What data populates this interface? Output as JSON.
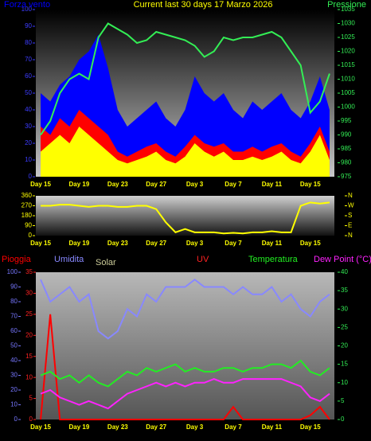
{
  "chart_data": [
    {
      "type": "area",
      "title": "Current last 30 days 17 Marzo 2026",
      "categories": [
        "Day 15",
        null,
        null,
        null,
        "Day 19",
        null,
        null,
        null,
        "Day 23",
        null,
        null,
        null,
        "Day 27",
        null,
        null,
        null,
        "Day 3",
        null,
        null,
        null,
        "Day 7",
        null,
        null,
        null,
        "Day 11",
        null,
        null,
        null,
        "Day 15",
        null,
        null
      ],
      "ylim": [
        0,
        100
      ],
      "yticks": [
        0,
        10,
        20,
        30,
        40,
        50,
        60,
        70,
        80,
        90,
        100
      ],
      "ycolor": "#3c3cff",
      "y2lim": [
        975,
        1035
      ],
      "y2ticks": [
        975,
        980,
        985,
        990,
        995,
        1000,
        1005,
        1010,
        1015,
        1020,
        1025,
        1030,
        1035
      ],
      "y2color": "#33ee55",
      "series": [
        {
          "name": "Forza vento",
          "color": "#0000ff",
          "values": [
            50,
            45,
            55,
            60,
            70,
            75,
            85,
            65,
            40,
            30,
            35,
            40,
            45,
            35,
            30,
            40,
            60,
            50,
            45,
            50,
            40,
            35,
            45,
            40,
            45,
            50,
            40,
            35,
            45,
            60,
            40
          ]
        },
        {
          "color": "#ff0000",
          "values": [
            30,
            25,
            35,
            30,
            40,
            35,
            30,
            25,
            15,
            12,
            15,
            18,
            20,
            15,
            12,
            18,
            25,
            20,
            18,
            20,
            15,
            15,
            18,
            15,
            18,
            20,
            15,
            12,
            20,
            30,
            15
          ]
        },
        {
          "color": "#ffff00",
          "values": [
            15,
            20,
            25,
            20,
            30,
            25,
            20,
            15,
            10,
            8,
            10,
            12,
            15,
            10,
            8,
            12,
            20,
            15,
            12,
            15,
            10,
            10,
            12,
            10,
            12,
            15,
            10,
            8,
            15,
            25,
            10
          ]
        },
        {
          "name": "Pressione",
          "type": "line",
          "axis": "y2",
          "color": "#33ee55",
          "values": [
            990,
            995,
            1005,
            1010,
            1012,
            1010,
            1025,
            1030,
            1028,
            1026,
            1023,
            1024,
            1027,
            1026,
            1025,
            1024,
            1022,
            1018,
            1020,
            1025,
            1024,
            1025,
            1025,
            1026,
            1027,
            1025,
            1020,
            1015,
            998,
            1002,
            1012
          ]
        }
      ]
    },
    {
      "type": "line",
      "categories": [
        "Day 15",
        null,
        null,
        null,
        "Day 19",
        null,
        null,
        null,
        "Day 23",
        null,
        null,
        null,
        "Day 27",
        null,
        null,
        null,
        "Day 3",
        null,
        null,
        null,
        "Day 7",
        null,
        null,
        null,
        "Day 11",
        null,
        null,
        null,
        "Day 15",
        null,
        null
      ],
      "ylim": [
        0,
        360
      ],
      "yticks": [
        0,
        90,
        180,
        270,
        360
      ],
      "ycolor": "#ffff00",
      "y2lim": [
        0,
        360
      ],
      "y2ticks": [
        {
          "value": 360,
          "label": "N"
        },
        {
          "value": 270,
          "label": "W"
        },
        {
          "value": 180,
          "label": "S"
        },
        {
          "value": 90,
          "label": "E"
        },
        {
          "value": 0,
          "label": "N"
        }
      ],
      "y2color": "#ffff00",
      "series": [
        {
          "color": "#ffff00",
          "values": [
            270,
            270,
            280,
            280,
            270,
            260,
            270,
            270,
            260,
            260,
            270,
            270,
            240,
            120,
            30,
            60,
            30,
            30,
            30,
            20,
            25,
            20,
            30,
            30,
            40,
            30,
            30,
            270,
            300,
            290,
            300
          ]
        }
      ]
    },
    {
      "type": "line",
      "categories": [
        "Day 15",
        null,
        null,
        null,
        "Day 19",
        null,
        null,
        null,
        "Day 23",
        null,
        null,
        null,
        "Day 27",
        null,
        null,
        null,
        "Day 3",
        null,
        null,
        null,
        "Day 7",
        null,
        null,
        null,
        "Day 11",
        null,
        null,
        null,
        "Day 15",
        null,
        null
      ],
      "ylim": [
        0,
        100
      ],
      "yticks": [
        0,
        10,
        20,
        30,
        40,
        50,
        60,
        70,
        80,
        90,
        100
      ],
      "ycolor": "#7777ff",
      "y2lim": [
        0,
        40
      ],
      "y2ticks": [
        0,
        5,
        10,
        15,
        20,
        25,
        30,
        35,
        40
      ],
      "y2color": "#33ee55",
      "y3lim": [
        0,
        35
      ],
      "y3ticks": [
        0,
        5,
        10,
        15,
        20,
        25,
        30,
        35
      ],
      "y3color": "#ff2222",
      "other_labels": [
        "Solar",
        "UV"
      ],
      "series": [
        {
          "name": "Pioggia",
          "axis": "y3",
          "color": "#ff0000",
          "values": [
            0,
            25,
            0,
            0,
            0,
            0,
            0,
            0,
            0,
            0,
            0,
            0,
            0,
            0,
            0,
            0,
            0,
            0,
            0,
            0,
            3,
            0,
            0,
            0,
            0,
            0,
            0,
            0,
            1,
            3,
            0
          ]
        },
        {
          "name": "Umidita",
          "color": "#8888ff",
          "values": [
            95,
            80,
            85,
            90,
            80,
            85,
            60,
            55,
            60,
            75,
            70,
            85,
            80,
            90,
            90,
            90,
            95,
            90,
            90,
            90,
            85,
            90,
            85,
            85,
            90,
            80,
            85,
            75,
            70,
            80,
            85
          ]
        },
        {
          "name": "Temperatura",
          "axis": "y2",
          "color": "#22ee22",
          "values": [
            12,
            13,
            11,
            12,
            10,
            12,
            10,
            9,
            11,
            13,
            12,
            14,
            13,
            14,
            15,
            13,
            14,
            13,
            13,
            14,
            14,
            13,
            14,
            14,
            15,
            15,
            14,
            16,
            13,
            12,
            14
          ]
        },
        {
          "name": "Dew Point (°C)",
          "axis": "y2",
          "color": "#ff22ff",
          "values": [
            7,
            8,
            6,
            5,
            4,
            5,
            4,
            3,
            5,
            7,
            8,
            9,
            10,
            9,
            10,
            9,
            10,
            10,
            11,
            10,
            10,
            11,
            11,
            11,
            11,
            11,
            10,
            9,
            6,
            5,
            7
          ]
        }
      ]
    }
  ]
}
